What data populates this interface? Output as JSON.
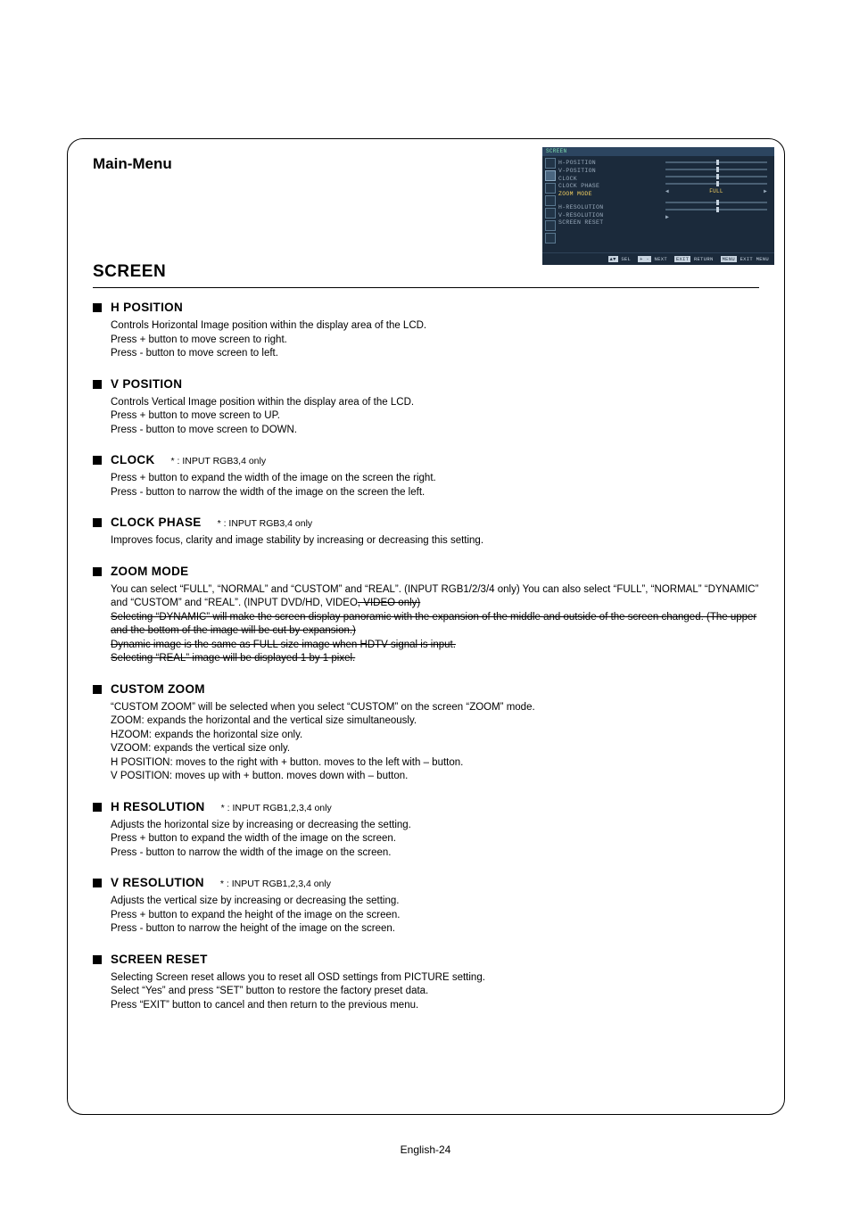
{
  "header": {
    "main_menu": "Main-Menu",
    "screen_title": "SCREEN"
  },
  "footer": {
    "page": "English-24"
  },
  "sections": [
    {
      "title": "H POSITION",
      "note": "",
      "body": "Controls Horizontal Image position within the display area of the LCD.\nPress + button to move screen to right.\nPress - button to move screen to left."
    },
    {
      "title": "V POSITION",
      "note": "",
      "body": "Controls Vertical Image position within the display area of the LCD.\nPress + button to move screen to UP.\nPress - button to move screen to DOWN."
    },
    {
      "title": "CLOCK",
      "note": "* : INPUT RGB3,4 only",
      "body": "Press + button to expand the width of the image on the screen the right.\nPress - button to narrow the width of the image on the screen the left."
    },
    {
      "title": "CLOCK PHASE",
      "note": "* : INPUT RGB3,4 only",
      "body": "Improves focus, clarity and image stability by increasing or decreasing this setting."
    },
    {
      "title": "ZOOM MODE",
      "note": "",
      "body": "You can select “FULL”, “NORMAL” and “CUSTOM” and “REAL”. (INPUT RGB1/2/3/4 only)  You can also select “FULL”, “NORMAL” “DYNAMIC” and “CUSTOM” and “REAL”. (INPUT DVD/HD, VIDEO<S>, VIDEO only)\nSelecting “DYNAMIC” will make the screen display panoramic with the expansion of the middle and outside of the screen changed. (The upper and the bottom of the image will be cut by expansion.)\nDynamic image is the same as FULL size image when HDTV signal is input.\nSelecting “REAL” image will be displayed 1 by 1 pixel."
    },
    {
      "title": "CUSTOM ZOOM",
      "note": "",
      "body": "“CUSTOM ZOOM” will be selected when you select “CUSTOM” on the screen “ZOOM” mode.\nZOOM: expands the horizontal and the vertical size simultaneously.\nHZOOM:  expands the horizontal size only.\nVZOOM:  expands the vertical size only.\nH POSITION: moves to the right with + button. moves to the left with – button.\nV POSITION: moves up with + button. moves down with – button."
    },
    {
      "title": "H RESOLUTION",
      "note": "* : INPUT RGB1,2,3,4 only",
      "body": "Adjusts the horizontal size by increasing or decreasing the setting.\nPress + button to expand the width of the image on the screen.\nPress - button to narrow the width of the image on the screen."
    },
    {
      "title": "V RESOLUTION",
      "note": "* : INPUT RGB1,2,3,4 only",
      "body": "Adjusts the vertical size by increasing or decreasing the setting.\nPress + button to expand the height of the image on the screen.\nPress - button to narrow the height of the image on the screen."
    },
    {
      "title": "SCREEN RESET",
      "note": "",
      "body": "Selecting Screen reset allows you to reset all OSD settings from PICTURE setting.\nSelect “Yes” and press “SET” button to restore the factory preset data.\nPress “EXIT” button to cancel and then return to the previous menu."
    }
  ],
  "osd": {
    "title": "SCREEN",
    "bg_color": "#1b2a3b",
    "accent_color": "#f5d060",
    "text_color": "#9ab",
    "group1": [
      "H-POSITION",
      "V-POSITION",
      "CLOCK",
      "CLOCK PHASE",
      "ZOOM MODE"
    ],
    "group2": [
      "H-RESOLUTION",
      "V-RESOLUTION",
      "SCREEN RESET"
    ],
    "zoom_value": "FULL",
    "slider_positions": [
      0.5,
      0.5,
      0.5,
      0.5,
      0.5,
      0.5
    ],
    "footer_items": [
      {
        "tag": "▲▼",
        "label": "SEL"
      },
      {
        "tag": "+ -",
        "label": "NEXT"
      },
      {
        "tag": "EXIT",
        "label": "RETURN"
      },
      {
        "tag": "MENU",
        "label": "EXIT MENU"
      }
    ]
  }
}
